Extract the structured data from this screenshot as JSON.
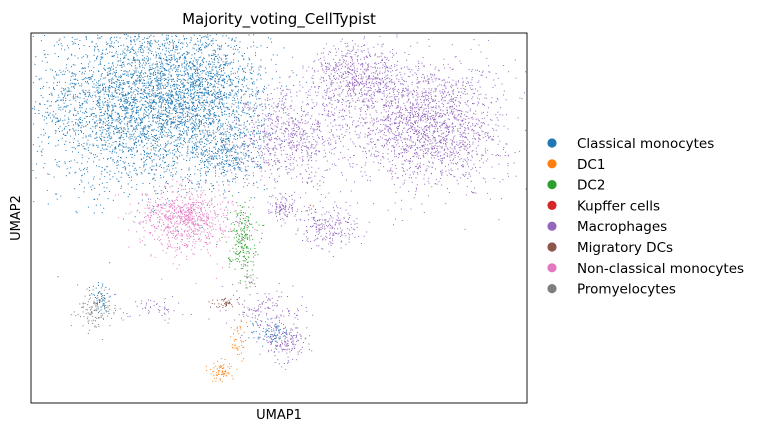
{
  "chart_data": {
    "type": "scatter",
    "title": "Majority_voting_CellTypist",
    "xlabel": "UMAP1",
    "ylabel": "UMAP2",
    "grid": false,
    "legend_position": "right",
    "series": [
      {
        "name": "Classical monocytes",
        "color": "#1f77b4",
        "clusters": [
          {
            "cx": -7.0,
            "cy": 6.8,
            "sx": 2.4,
            "sy": 1.9,
            "n": 3200
          },
          {
            "cx": -3.6,
            "cy": 7.2,
            "sx": 1.5,
            "sy": 1.6,
            "n": 1400
          },
          {
            "cx": -2.6,
            "cy": 4.4,
            "sx": 0.8,
            "sy": 0.7,
            "n": 300
          },
          {
            "cx": -8.6,
            "cy": -2.2,
            "sx": 0.25,
            "sy": 0.5,
            "n": 60
          },
          {
            "cx": -0.4,
            "cy": -3.8,
            "sx": 0.5,
            "sy": 0.3,
            "n": 80
          }
        ]
      },
      {
        "name": "DC1",
        "color": "#ff7f0e",
        "clusters": [
          {
            "cx": -2.8,
            "cy": -5.5,
            "sx": 0.3,
            "sy": 0.25,
            "n": 70
          },
          {
            "cx": -2.0,
            "cy": -4.2,
            "sx": 0.15,
            "sy": 0.5,
            "n": 40
          }
        ]
      },
      {
        "name": "DC2",
        "color": "#2ca02c",
        "clusters": [
          {
            "cx": -1.8,
            "cy": 0.6,
            "sx": 0.35,
            "sy": 0.8,
            "n": 220
          }
        ]
      },
      {
        "name": "Kupffer cells",
        "color": "#d62728",
        "clusters": [
          {
            "cx": 1.5,
            "cy": 2.0,
            "sx": 0.15,
            "sy": 0.15,
            "n": 4
          }
        ]
      },
      {
        "name": "Macrophages",
        "color": "#9467bd",
        "clusters": [
          {
            "cx": 7.2,
            "cy": 5.8,
            "sx": 1.8,
            "sy": 1.4,
            "n": 1900
          },
          {
            "cx": 3.8,
            "cy": 8.0,
            "sx": 1.2,
            "sy": 0.8,
            "n": 650
          },
          {
            "cx": 0.5,
            "cy": 5.2,
            "sx": 1.5,
            "sy": 1.1,
            "n": 800
          },
          {
            "cx": 2.4,
            "cy": 1.1,
            "sx": 0.7,
            "sy": 0.5,
            "n": 220
          },
          {
            "cx": 0.2,
            "cy": 2.0,
            "sx": 0.35,
            "sy": 0.3,
            "n": 110
          },
          {
            "cx": 0.3,
            "cy": -4.2,
            "sx": 0.5,
            "sy": 0.4,
            "n": 160
          },
          {
            "cx": -0.6,
            "cy": -2.8,
            "sx": 0.9,
            "sy": 0.5,
            "n": 140
          },
          {
            "cx": -6.0,
            "cy": -2.6,
            "sx": 0.7,
            "sy": 0.3,
            "n": 50
          }
        ]
      },
      {
        "name": "Migratory DCs",
        "color": "#8c564b",
        "clusters": [
          {
            "cx": -2.6,
            "cy": -2.4,
            "sx": 0.35,
            "sy": 0.12,
            "n": 45
          }
        ]
      },
      {
        "name": "Non-classical monocytes",
        "color": "#e377c2",
        "clusters": [
          {
            "cx": -4.5,
            "cy": 1.5,
            "sx": 1.1,
            "sy": 0.75,
            "n": 800
          }
        ]
      },
      {
        "name": "Promyelocytes",
        "color": "#7f7f7f",
        "clusters": [
          {
            "cx": -8.8,
            "cy": -2.7,
            "sx": 0.5,
            "sy": 0.4,
            "n": 130
          },
          {
            "cx": -1.5,
            "cy": -1.3,
            "sx": 0.3,
            "sy": 0.2,
            "n": 25
          }
        ]
      }
    ]
  }
}
